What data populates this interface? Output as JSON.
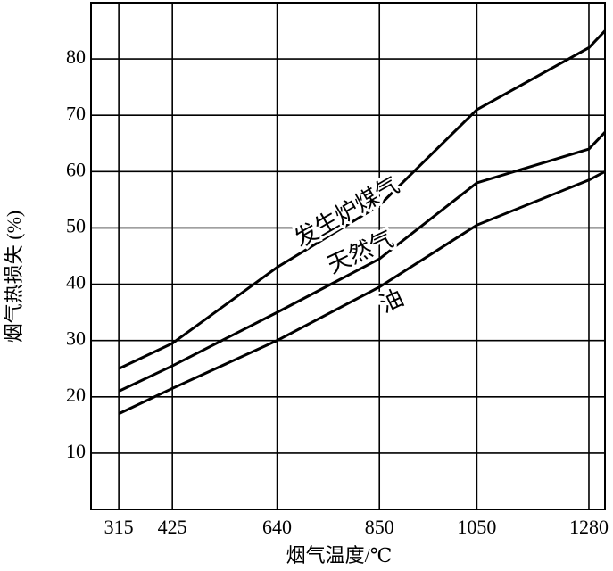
{
  "chart_data": {
    "type": "line",
    "xlabel": "烟气温度/℃",
    "ylabel": "烟气热损失 (%)",
    "x": [
      315,
      425,
      640,
      850,
      1050,
      1280,
      1313
    ],
    "series": [
      {
        "name": "发生炉煤气",
        "color": "#000000",
        "values": [
          25,
          29.5,
          43,
          54,
          71,
          82,
          85
        ]
      },
      {
        "name": "天然气",
        "color": "#000000",
        "values": [
          21,
          25.5,
          35,
          44.5,
          58,
          64,
          67
        ]
      },
      {
        "name": "油",
        "color": "#000000",
        "values": [
          17,
          21.5,
          30,
          39.5,
          50.5,
          58.5,
          60
        ]
      }
    ],
    "xlim": [
      258,
      1313
    ],
    "ylim": [
      0,
      90
    ],
    "xticks": [
      315,
      425,
      640,
      850,
      1050,
      1280
    ],
    "yticks": [
      10,
      20,
      30,
      40,
      50,
      60,
      70,
      80
    ],
    "grid": true
  }
}
